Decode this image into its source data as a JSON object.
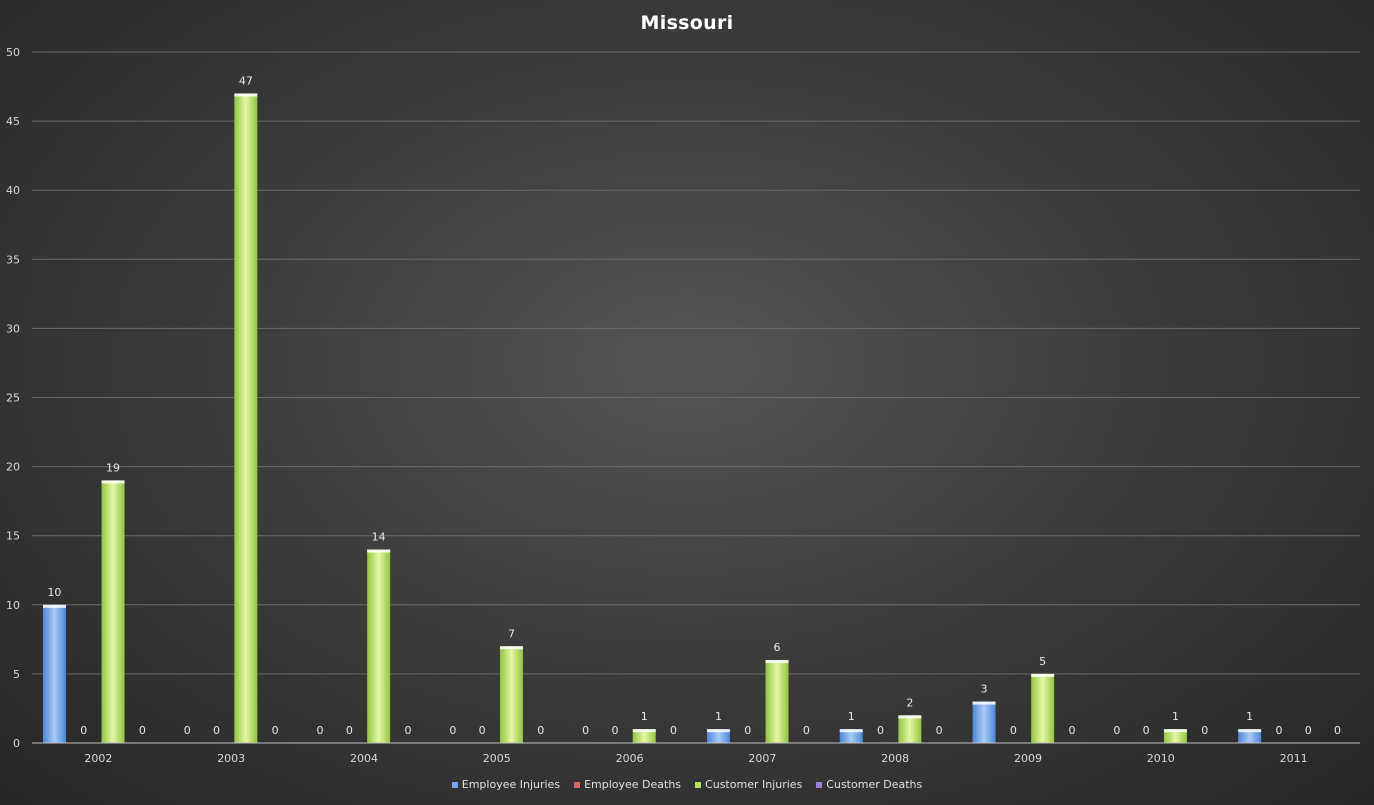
{
  "chart_data": {
    "type": "bar",
    "title": "Missouri",
    "xlabel": "",
    "ylabel": "",
    "categories": [
      "2002",
      "2003",
      "2004",
      "2005",
      "2006",
      "2007",
      "2008",
      "2009",
      "2010",
      "2011"
    ],
    "series": [
      {
        "name": "Employee Injuries",
        "color": "#6fa8f0",
        "values": [
          10,
          0,
          0,
          0,
          0,
          1,
          1,
          3,
          0,
          1
        ]
      },
      {
        "name": "Employee Deaths",
        "color": "#e06666",
        "values": [
          0,
          0,
          0,
          0,
          0,
          0,
          0,
          0,
          0,
          0
        ]
      },
      {
        "name": "Customer Injuries",
        "color": "#b5e061",
        "values": [
          19,
          47,
          14,
          7,
          1,
          6,
          2,
          5,
          1,
          0
        ]
      },
      {
        "name": "Customer Deaths",
        "color": "#9e7fd6",
        "values": [
          0,
          0,
          0,
          0,
          0,
          0,
          0,
          0,
          0,
          0
        ]
      }
    ],
    "ylim": [
      0,
      50
    ],
    "yticks": [
      "0",
      "5",
      "10",
      "15",
      "20",
      "25",
      "30",
      "35",
      "40",
      "45",
      "50"
    ],
    "grid": true,
    "data_labels": true,
    "legend_position": "bottom"
  }
}
